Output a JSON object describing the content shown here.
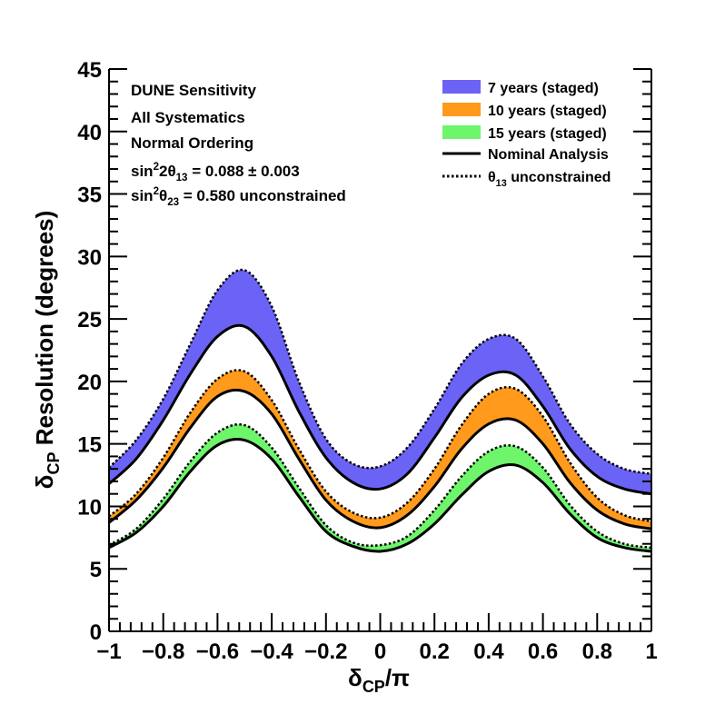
{
  "chart_data": {
    "type": "area",
    "xlabel": {
      "main": "δ",
      "sub": "CP",
      "suffix": "/π"
    },
    "ylabel": {
      "main": "δ",
      "sub": "CP",
      "suffix": " Resolution (degrees)"
    },
    "xlim": [
      -1,
      1
    ],
    "ylim": [
      0,
      45
    ],
    "x_ticks": [
      -1,
      -0.8,
      -0.6,
      -0.4,
      -0.2,
      0,
      0.2,
      0.4,
      0.6,
      0.8,
      1
    ],
    "x_tick_labels": [
      "−1",
      "−0.8",
      "−0.6",
      "−0.4",
      "−0.2",
      "0",
      "0.2",
      "0.4",
      "0.6",
      "0.8",
      "1"
    ],
    "y_ticks": [
      0,
      5,
      10,
      15,
      20,
      25,
      30,
      35,
      40,
      45
    ],
    "y_tick_labels": [
      "0",
      "5",
      "10",
      "15",
      "20",
      "25",
      "30",
      "35",
      "40",
      "45"
    ],
    "grid": false,
    "legend_placement": "top-right",
    "annotations": [
      {
        "segments": [
          {
            "t": "DUNE Sensitivity"
          }
        ]
      },
      {
        "segments": [
          {
            "t": "All Systematics"
          }
        ]
      },
      {
        "segments": [
          {
            "t": "Normal Ordering"
          }
        ]
      },
      {
        "segments": [
          {
            "t": "sin"
          },
          {
            "t": "2",
            "sup": true
          },
          {
            "t": "2θ"
          },
          {
            "t": "13",
            "sub": true
          },
          {
            "t": " = 0.088 ± 0.003"
          }
        ]
      },
      {
        "segments": [
          {
            "t": "sin"
          },
          {
            "t": "2",
            "sup": true
          },
          {
            "t": "θ"
          },
          {
            "t": "23",
            "sub": true
          },
          {
            "t": " = 0.580 unconstrained"
          }
        ]
      }
    ],
    "legend": [
      {
        "kind": "fill",
        "color": "#6b63f5",
        "segments": [
          {
            "t": "7 years (staged)"
          }
        ]
      },
      {
        "kind": "fill",
        "color": "#ff9a1c",
        "segments": [
          {
            "t": "10 years (staged)"
          }
        ]
      },
      {
        "kind": "fill",
        "color": "#6ef56b",
        "segments": [
          {
            "t": "15 years (staged)"
          }
        ]
      },
      {
        "kind": "solid",
        "color": "#000000",
        "segments": [
          {
            "t": "Nominal Analysis"
          }
        ]
      },
      {
        "kind": "dotted",
        "color": "#000000",
        "segments": [
          {
            "t": "θ"
          },
          {
            "t": "13",
            "sub": true
          },
          {
            "t": " unconstrained"
          }
        ]
      }
    ],
    "x": [
      -1,
      -0.9,
      -0.8,
      -0.7,
      -0.6,
      -0.5,
      -0.4,
      -0.3,
      -0.2,
      -0.1,
      0,
      0.1,
      0.2,
      0.3,
      0.4,
      0.5,
      0.6,
      0.7,
      0.8,
      0.9,
      1
    ],
    "series": [
      {
        "name": "7 years (staged)",
        "color": "#6b63f5",
        "nominal": [
          11.8,
          13.8,
          16.9,
          20.6,
          23.6,
          24.4,
          22.0,
          17.6,
          13.9,
          11.9,
          11.4,
          12.6,
          15.5,
          18.7,
          20.5,
          20.5,
          18.0,
          14.6,
          12.4,
          11.4,
          11.0
        ],
        "unconstrained": [
          13.1,
          15.3,
          18.6,
          23.0,
          27.3,
          28.9,
          26.0,
          20.0,
          15.4,
          13.4,
          13.2,
          14.7,
          17.8,
          21.4,
          23.4,
          23.4,
          20.4,
          16.6,
          14.2,
          13.0,
          12.6
        ]
      },
      {
        "name": "10 years (staged)",
        "color": "#ff9a1c",
        "nominal": [
          8.7,
          10.5,
          13.1,
          16.3,
          18.8,
          19.2,
          17.4,
          13.8,
          10.5,
          8.8,
          8.3,
          9.3,
          11.6,
          14.6,
          16.6,
          16.9,
          15.0,
          11.9,
          9.7,
          8.6,
          8.2
        ],
        "unconstrained": [
          9.2,
          11.0,
          13.9,
          17.5,
          20.2,
          20.8,
          18.5,
          14.6,
          11.2,
          9.5,
          9.1,
          10.3,
          13.0,
          16.5,
          19.0,
          19.4,
          17.2,
          13.5,
          10.7,
          9.3,
          8.8
        ]
      },
      {
        "name": "15 years (staged)",
        "color": "#6ef56b",
        "nominal": [
          6.7,
          7.9,
          10.0,
          12.8,
          14.9,
          15.3,
          13.8,
          10.8,
          8.0,
          6.8,
          6.4,
          7.0,
          8.6,
          10.9,
          12.8,
          13.3,
          11.9,
          9.4,
          7.5,
          6.7,
          6.4
        ],
        "unconstrained": [
          6.9,
          8.2,
          10.6,
          13.6,
          15.9,
          16.5,
          14.7,
          11.5,
          8.5,
          7.1,
          6.9,
          7.6,
          9.7,
          12.4,
          14.4,
          14.8,
          13.1,
          10.1,
          8.0,
          7.0,
          6.7
        ]
      }
    ]
  }
}
